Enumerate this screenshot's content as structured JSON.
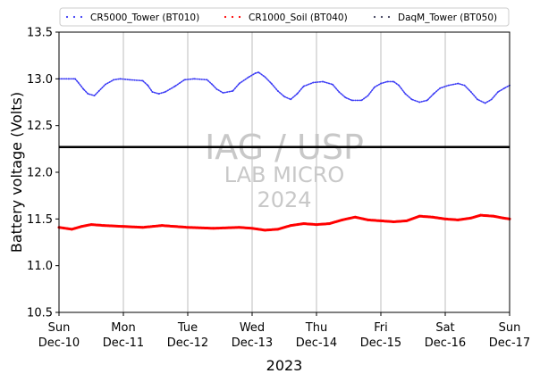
{
  "chart_data": {
    "type": "scatter",
    "title": "",
    "xlabel": "2023",
    "ylabel": "Battery voltage (Volts)",
    "ylim": [
      10.5,
      13.5
    ],
    "xlim_days": [
      0,
      7
    ],
    "yticks": [
      "10.5",
      "11.0",
      "11.5",
      "12.0",
      "12.5",
      "13.0",
      "13.5"
    ],
    "xticks": [
      {
        "day": "Sun",
        "date": "Dec-10"
      },
      {
        "day": "Mon",
        "date": "Dec-11"
      },
      {
        "day": "Tue",
        "date": "Dec-12"
      },
      {
        "day": "Wed",
        "date": "Dec-13"
      },
      {
        "day": "Thu",
        "date": "Dec-14"
      },
      {
        "day": "Fri",
        "date": "Dec-15"
      },
      {
        "day": "Sat",
        "date": "Dec-16"
      },
      {
        "day": "Sun",
        "date": "Dec-17"
      }
    ],
    "grid": "vertical",
    "legend_position": "top",
    "reference_line": {
      "y": 12.27,
      "color": "#000000"
    },
    "watermark": {
      "line1": "IAG / USP",
      "line2": "LAB MICRO",
      "line3": "2024"
    },
    "series": [
      {
        "name": "CR5000_Tower (BT010)",
        "color": "#3b3bf5",
        "points": [
          [
            0.0,
            13.0
          ],
          [
            0.15,
            13.0
          ],
          [
            0.25,
            13.0
          ],
          [
            0.3,
            12.96
          ],
          [
            0.38,
            12.89
          ],
          [
            0.45,
            12.84
          ],
          [
            0.55,
            12.82
          ],
          [
            0.62,
            12.87
          ],
          [
            0.72,
            12.94
          ],
          [
            0.85,
            12.99
          ],
          [
            0.95,
            13.0
          ],
          [
            1.1,
            12.99
          ],
          [
            1.3,
            12.98
          ],
          [
            1.38,
            12.93
          ],
          [
            1.45,
            12.86
          ],
          [
            1.55,
            12.84
          ],
          [
            1.65,
            12.86
          ],
          [
            1.8,
            12.92
          ],
          [
            1.95,
            12.99
          ],
          [
            2.1,
            13.0
          ],
          [
            2.3,
            12.99
          ],
          [
            2.38,
            12.94
          ],
          [
            2.45,
            12.89
          ],
          [
            2.55,
            12.85
          ],
          [
            2.7,
            12.87
          ],
          [
            2.8,
            12.95
          ],
          [
            2.95,
            13.02
          ],
          [
            3.05,
            13.06
          ],
          [
            3.1,
            13.07
          ],
          [
            3.2,
            13.02
          ],
          [
            3.3,
            12.95
          ],
          [
            3.4,
            12.87
          ],
          [
            3.5,
            12.81
          ],
          [
            3.6,
            12.78
          ],
          [
            3.7,
            12.84
          ],
          [
            3.8,
            12.92
          ],
          [
            3.95,
            12.96
          ],
          [
            4.1,
            12.97
          ],
          [
            4.25,
            12.94
          ],
          [
            4.35,
            12.86
          ],
          [
            4.45,
            12.8
          ],
          [
            4.55,
            12.77
          ],
          [
            4.7,
            12.77
          ],
          [
            4.8,
            12.82
          ],
          [
            4.9,
            12.91
          ],
          [
            5.0,
            12.95
          ],
          [
            5.1,
            12.97
          ],
          [
            5.2,
            12.97
          ],
          [
            5.28,
            12.93
          ],
          [
            5.38,
            12.84
          ],
          [
            5.48,
            12.78
          ],
          [
            5.6,
            12.75
          ],
          [
            5.72,
            12.77
          ],
          [
            5.82,
            12.84
          ],
          [
            5.92,
            12.9
          ],
          [
            6.05,
            12.93
          ],
          [
            6.2,
            12.95
          ],
          [
            6.3,
            12.93
          ],
          [
            6.4,
            12.86
          ],
          [
            6.5,
            12.78
          ],
          [
            6.62,
            12.74
          ],
          [
            6.72,
            12.78
          ],
          [
            6.82,
            12.86
          ],
          [
            6.92,
            12.9
          ],
          [
            7.0,
            12.93
          ]
        ]
      },
      {
        "name": "CR1000_Soil (BT040)",
        "color": "#ff0000",
        "points": [
          [
            0.0,
            11.41
          ],
          [
            0.2,
            11.39
          ],
          [
            0.35,
            11.42
          ],
          [
            0.5,
            11.44
          ],
          [
            0.7,
            11.43
          ],
          [
            1.0,
            11.42
          ],
          [
            1.3,
            11.41
          ],
          [
            1.6,
            11.43
          ],
          [
            2.0,
            11.41
          ],
          [
            2.4,
            11.4
          ],
          [
            2.8,
            11.41
          ],
          [
            3.0,
            11.4
          ],
          [
            3.2,
            11.38
          ],
          [
            3.4,
            11.39
          ],
          [
            3.6,
            11.43
          ],
          [
            3.8,
            11.45
          ],
          [
            4.0,
            11.44
          ],
          [
            4.2,
            11.45
          ],
          [
            4.4,
            11.49
          ],
          [
            4.6,
            11.52
          ],
          [
            4.8,
            11.49
          ],
          [
            5.0,
            11.48
          ],
          [
            5.2,
            11.47
          ],
          [
            5.4,
            11.48
          ],
          [
            5.6,
            11.53
          ],
          [
            5.8,
            11.52
          ],
          [
            6.0,
            11.5
          ],
          [
            6.2,
            11.49
          ],
          [
            6.4,
            11.51
          ],
          [
            6.55,
            11.54
          ],
          [
            6.75,
            11.53
          ],
          [
            6.9,
            11.51
          ],
          [
            7.0,
            11.5
          ]
        ]
      },
      {
        "name": "DaqM_Tower (BT050)",
        "color": "#3f3f5a",
        "points": []
      }
    ]
  }
}
